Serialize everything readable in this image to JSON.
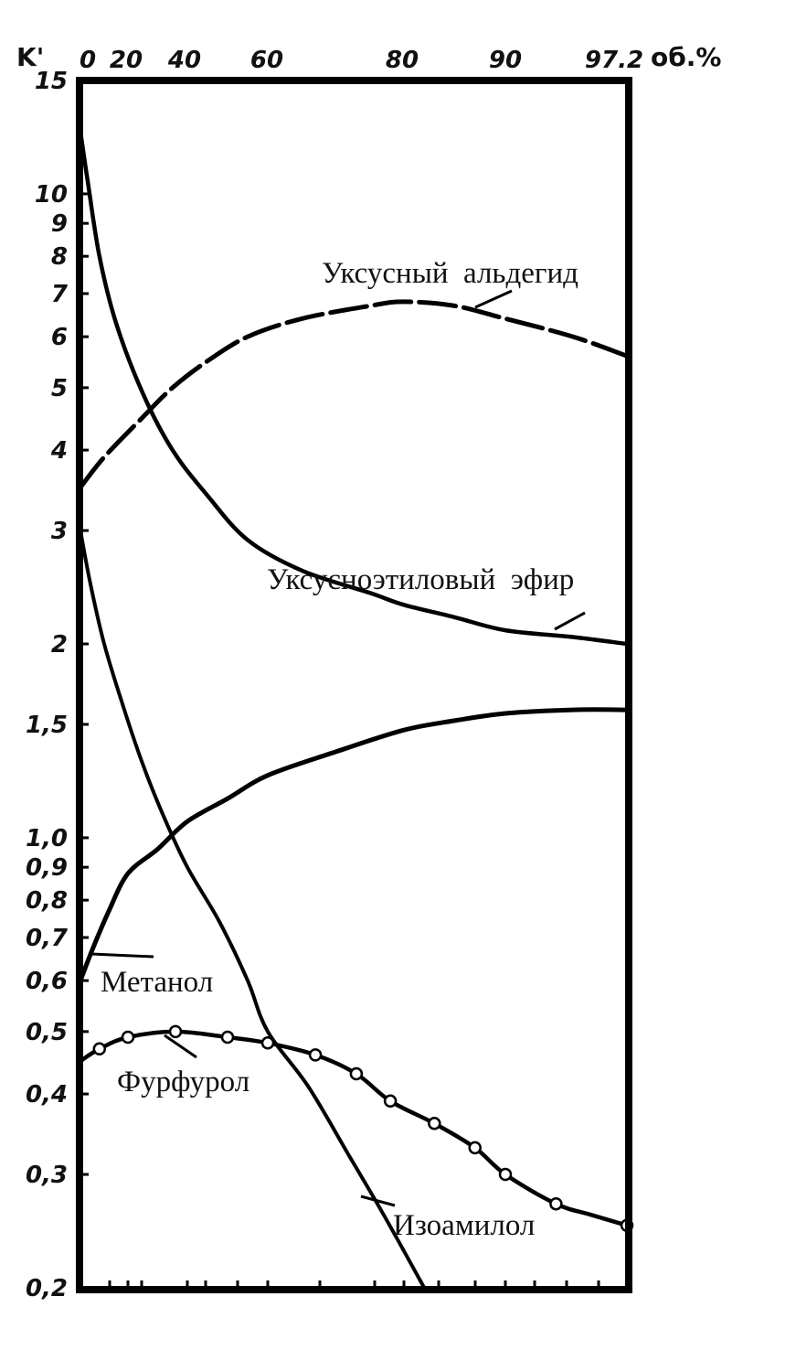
{
  "chart_data": {
    "type": "line",
    "title": "",
    "xlabel": "об.%",
    "ylabel": "K'",
    "x_scale": "nonlinear-top",
    "y_scale": "log",
    "xlim": [
      0,
      97.2
    ],
    "ylim": [
      0.2,
      15
    ],
    "x_ticks": [
      {
        "value": 0,
        "label": "0"
      },
      {
        "value": 20,
        "label": "20"
      },
      {
        "value": 40,
        "label": "40"
      },
      {
        "value": 60,
        "label": "60"
      },
      {
        "value": 80,
        "label": "80"
      },
      {
        "value": 90,
        "label": "90"
      },
      {
        "value": 97.2,
        "label": "97.2"
      }
    ],
    "y_ticks": [
      {
        "value": 15,
        "label": "15"
      },
      {
        "value": 10,
        "label": "10"
      },
      {
        "value": 9,
        "label": "9"
      },
      {
        "value": 8,
        "label": "8"
      },
      {
        "value": 7,
        "label": "7"
      },
      {
        "value": 6,
        "label": "6"
      },
      {
        "value": 5,
        "label": "5"
      },
      {
        "value": 4,
        "label": "4"
      },
      {
        "value": 3,
        "label": "3"
      },
      {
        "value": 2,
        "label": "2"
      },
      {
        "value": 1.5,
        "label": "1,5"
      },
      {
        "value": 1.0,
        "label": "1,0"
      },
      {
        "value": 0.9,
        "label": "0,9"
      },
      {
        "value": 0.8,
        "label": "0,8"
      },
      {
        "value": 0.7,
        "label": "0,7"
      },
      {
        "value": 0.6,
        "label": "0,6"
      },
      {
        "value": 0.5,
        "label": "0,5"
      },
      {
        "value": 0.4,
        "label": "0,4"
      },
      {
        "value": 0.3,
        "label": "0,3"
      },
      {
        "value": 0.2,
        "label": "0,2"
      }
    ],
    "grid": false,
    "series": [
      {
        "name": "Уксусный альдегид",
        "style": "dashed",
        "marker": "none",
        "x": [
          0,
          10,
          25,
          35,
          45,
          55,
          65,
          75,
          80,
          85,
          90,
          94,
          97.2
        ],
        "y": [
          3.5,
          3.9,
          4.5,
          5.0,
          5.5,
          6.0,
          6.4,
          6.7,
          6.8,
          6.7,
          6.4,
          6.0,
          5.6
        ]
      },
      {
        "name": "Уксусноэтиловый эфир",
        "style": "solid",
        "marker": "none",
        "x": [
          0,
          3,
          8,
          15,
          25,
          35,
          45,
          55,
          65,
          75,
          80,
          85,
          90,
          94,
          97.2
        ],
        "y": [
          12.5,
          10.5,
          8.0,
          6.3,
          4.9,
          4.0,
          3.4,
          2.9,
          2.6,
          2.4,
          2.3,
          2.2,
          2.1,
          2.05,
          2.0
        ]
      },
      {
        "name": "Метанол",
        "style": "solid",
        "marker": "none",
        "x": [
          0,
          5,
          12,
          20,
          30,
          40,
          50,
          60,
          70,
          80,
          85,
          90,
          94,
          97.2
        ],
        "y": [
          0.6,
          0.67,
          0.77,
          0.88,
          0.96,
          1.06,
          1.15,
          1.25,
          1.36,
          1.47,
          1.52,
          1.56,
          1.58,
          1.58
        ]
      },
      {
        "name": "Изоамилол",
        "style": "solid",
        "marker": "none",
        "x": [
          0,
          4,
          10,
          18,
          25,
          32,
          40,
          48,
          55,
          60,
          66,
          72,
          77,
          82
        ],
        "y": [
          3.0,
          2.5,
          2.0,
          1.6,
          1.3,
          1.08,
          0.9,
          0.74,
          0.6,
          0.5,
          0.41,
          0.32,
          0.26,
          0.2
        ]
      },
      {
        "name": "Фурфурол",
        "style": "solid",
        "marker": "circle",
        "x": [
          0,
          8,
          20,
          36,
          50,
          60,
          67,
          73,
          78,
          83,
          87,
          90,
          93,
          95,
          97.2
        ],
        "y": [
          0.45,
          0.47,
          0.49,
          0.5,
          0.49,
          0.48,
          0.46,
          0.43,
          0.39,
          0.36,
          0.33,
          0.3,
          0.27,
          0.26,
          0.25
        ]
      }
    ],
    "marked_points": {
      "Фурфурол": [
        {
          "x": 8,
          "y": 0.47
        },
        {
          "x": 20,
          "y": 0.49
        },
        {
          "x": 36,
          "y": 0.5
        },
        {
          "x": 50,
          "y": 0.49
        },
        {
          "x": 60,
          "y": 0.48
        },
        {
          "x": 67,
          "y": 0.46
        },
        {
          "x": 73,
          "y": 0.43
        },
        {
          "x": 78,
          "y": 0.39
        },
        {
          "x": 83,
          "y": 0.36
        },
        {
          "x": 87,
          "y": 0.33
        },
        {
          "x": 90,
          "y": 0.3
        },
        {
          "x": 93,
          "y": 0.27
        },
        {
          "x": 97.2,
          "y": 0.25
        }
      ]
    },
    "labels": {
      "acetaldehyde": "Уксусный  альдегид",
      "ethyl_acetate": "Уксусноэтиловый  эфир",
      "methanol": "Метанол",
      "furfural": "Фурфурол",
      "isoamylol": "Изоамилол"
    },
    "colors": {
      "line": "#000000",
      "background": "#ffffff"
    }
  }
}
